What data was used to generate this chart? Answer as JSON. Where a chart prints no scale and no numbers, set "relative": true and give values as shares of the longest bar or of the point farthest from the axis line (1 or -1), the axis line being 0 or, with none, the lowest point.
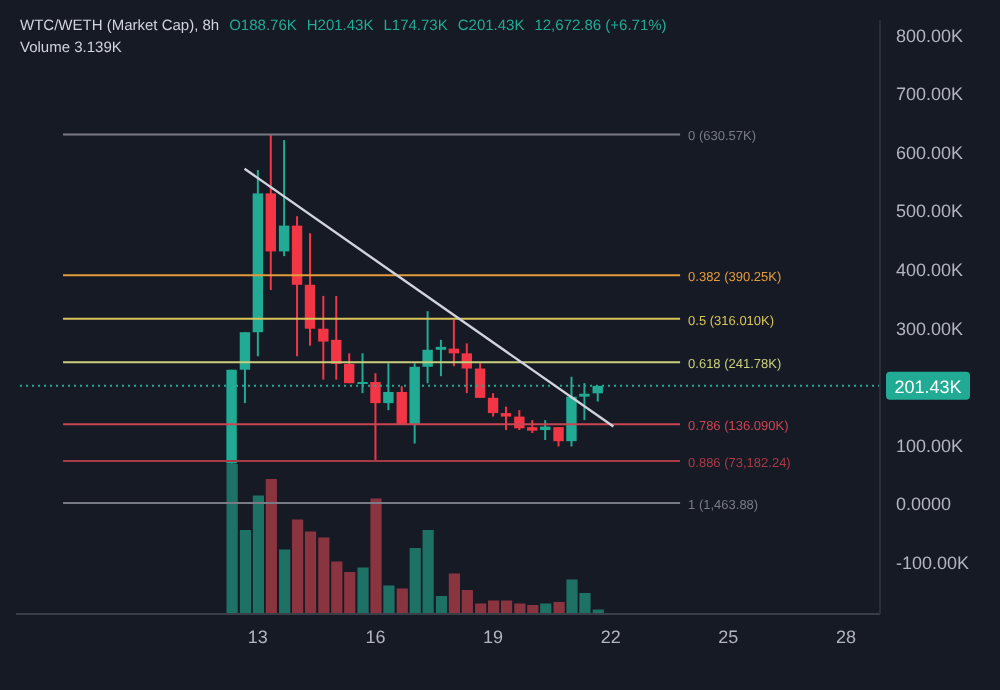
{
  "chart_data": [
    {
      "type": "candlestick",
      "title": "WTC/WETH (Market Cap), 8h",
      "annotations": [
        "O188.76K",
        "H201.43K",
        "L174.73K",
        "C201.43K",
        "12,672.86 (+6.71%)",
        "Volume 3.139K"
      ],
      "x": [
        12.33,
        12.67,
        13,
        13.33,
        13.67,
        14,
        14.33,
        14.67,
        15,
        15.33,
        15.67,
        16,
        16.33,
        16.67,
        17,
        17.33,
        17.67,
        18,
        18.33,
        18.67,
        19,
        19.33,
        19.67,
        20,
        20.33,
        20.67,
        21,
        21.33,
        21.67
      ],
      "ohlc": [
        [
          69000,
          229000,
          69000,
          229000
        ],
        [
          229000,
          293000,
          172000,
          293000
        ],
        [
          293000,
          570000,
          252000,
          530000
        ],
        [
          530000,
          630570,
          365000,
          431000
        ],
        [
          431000,
          621000,
          423000,
          475000
        ],
        [
          475000,
          491000,
          252000,
          374000
        ],
        [
          374000,
          462000,
          270000,
          299000
        ],
        [
          299000,
          355000,
          212000,
          277000
        ],
        [
          280000,
          355000,
          212000,
          239000
        ],
        [
          239000,
          257000,
          206000,
          206000
        ],
        [
          205000,
          257000,
          189000,
          208000
        ],
        [
          208000,
          223000,
          75000,
          172000
        ],
        [
          172000,
          240000,
          160000,
          191000
        ],
        [
          191000,
          201000,
          135000,
          135000
        ],
        [
          135000,
          240000,
          103000,
          234000
        ],
        [
          234000,
          329000,
          206000,
          263000
        ],
        [
          263000,
          280000,
          218000,
          268000
        ],
        [
          265000,
          314000,
          235000,
          257000
        ],
        [
          257000,
          274000,
          189000,
          231000
        ],
        [
          231000,
          240000,
          181000,
          181000
        ],
        [
          181000,
          189000,
          149000,
          155000
        ],
        [
          155000,
          166000,
          126000,
          149000
        ],
        [
          149000,
          160000,
          126000,
          129000
        ],
        [
          131000,
          143000,
          121000,
          125000
        ],
        [
          126000,
          143000,
          109000,
          132000
        ],
        [
          131000,
          131000,
          98000,
          107000
        ],
        [
          107000,
          217000,
          98000,
          183000
        ],
        [
          183000,
          206000,
          143000,
          188000
        ],
        [
          188760,
          201430,
          174730,
          201430
        ]
      ],
      "colors": [
        "#22ab94",
        "#22ab94",
        "#22ab94",
        "#f23645",
        "#22ab94",
        "#f23645",
        "#f23645",
        "#f23645",
        "#f23645",
        "#f23645",
        "#22ab94",
        "#f23645",
        "#22ab94",
        "#f23645",
        "#22ab94",
        "#22ab94",
        "#22ab94",
        "#f23645",
        "#f23645",
        "#f23645",
        "#f23645",
        "#f23645",
        "#f23645",
        "#f23645",
        "#22ab94",
        "#f23645",
        "#22ab94",
        "#22ab94",
        "#22ab94"
      ],
      "series": [
        {
          "type": "line",
          "x": [
            12.66,
            22.07
          ],
          "values": [
            572000,
            132000
          ],
          "color": "#d1d4dc"
        }
      ],
      "ref_lines": [
        {
          "axis": "y",
          "value": 630570,
          "label": "0 (630.57K)",
          "color": "#787b86"
        },
        {
          "axis": "y",
          "value": 390250,
          "label": "0.382 (390.25K)",
          "color": "#e39b3a"
        },
        {
          "axis": "y",
          "value": 316010,
          "label": "0.5 (316.010K)",
          "color": "#d8c35a"
        },
        {
          "axis": "y",
          "value": 241780,
          "label": "0.618 (241.78K)",
          "color": "#c8cf7a"
        },
        {
          "axis": "y",
          "value": 136090,
          "label": "0.786 (136.090K)",
          "color": "#c94552"
        },
        {
          "axis": "y",
          "value": 73182.24,
          "label": "0.886 (73,182.24)",
          "color": "#a83a46"
        },
        {
          "axis": "y",
          "value": 1463.88,
          "label": "1 (1,463.88)",
          "color": "#787b86"
        },
        {
          "axis": "y",
          "value": 201430,
          "label": "201.43K",
          "color": "#22ab94",
          "line_style": "dotted"
        }
      ],
      "xlim": [
        6.83,
        28.87
      ],
      "xticks": [
        13,
        16,
        19,
        22,
        25,
        28
      ],
      "ylim": [
        -188000,
        826000
      ],
      "yticks": [
        {
          "value": -100000,
          "label": "-100.00K"
        },
        {
          "value": 0,
          "label": "0.0000"
        },
        {
          "value": 100000,
          "label": "100.00K"
        },
        {
          "value": 300000,
          "label": "300.00K"
        },
        {
          "value": 400000,
          "label": "400.00K"
        },
        {
          "value": 500000,
          "label": "500.00K"
        },
        {
          "value": 600000,
          "label": "600.00K"
        },
        {
          "value": 700000,
          "label": "700.00K"
        },
        {
          "value": 800000,
          "label": "800.00K"
        }
      ],
      "grid": false,
      "legend": false
    },
    {
      "type": "bar",
      "relative": true,
      "x": [
        12.33,
        12.67,
        13,
        13.33,
        13.67,
        14,
        14.33,
        14.67,
        15,
        15.33,
        15.67,
        16,
        16.33,
        16.67,
        17,
        17.33,
        17.67,
        18,
        18.33,
        18.67,
        19,
        19.33,
        19.67,
        20,
        20.33,
        20.67,
        21,
        21.33,
        21.67
      ],
      "xlim": [
        6.83,
        28.87
      ],
      "values": [
        1,
        0.56,
        0.79,
        0.9,
        0.43,
        0.63,
        0.55,
        0.51,
        0.35,
        0.28,
        0.31,
        0.77,
        0.19,
        0.17,
        0.44,
        0.56,
        0.12,
        0.27,
        0.16,
        0.07,
        0.09,
        0.09,
        0.07,
        0.06,
        0.07,
        0.08,
        0.23,
        0.14,
        0.03
      ],
      "colors": [
        "#1e7165",
        "#1e7165",
        "#1e7165",
        "#8a3440",
        "#1e7165",
        "#8a3440",
        "#8a3440",
        "#8a3440",
        "#8a3440",
        "#8a3440",
        "#1e7165",
        "#8a3440",
        "#1e7165",
        "#8a3440",
        "#1e7165",
        "#1e7165",
        "#1e7165",
        "#8a3440",
        "#8a3440",
        "#8a3440",
        "#8a3440",
        "#8a3440",
        "#8a3440",
        "#8a3440",
        "#1e7165",
        "#8a3440",
        "#1e7165",
        "#1e7165",
        "#1e7165"
      ]
    }
  ]
}
